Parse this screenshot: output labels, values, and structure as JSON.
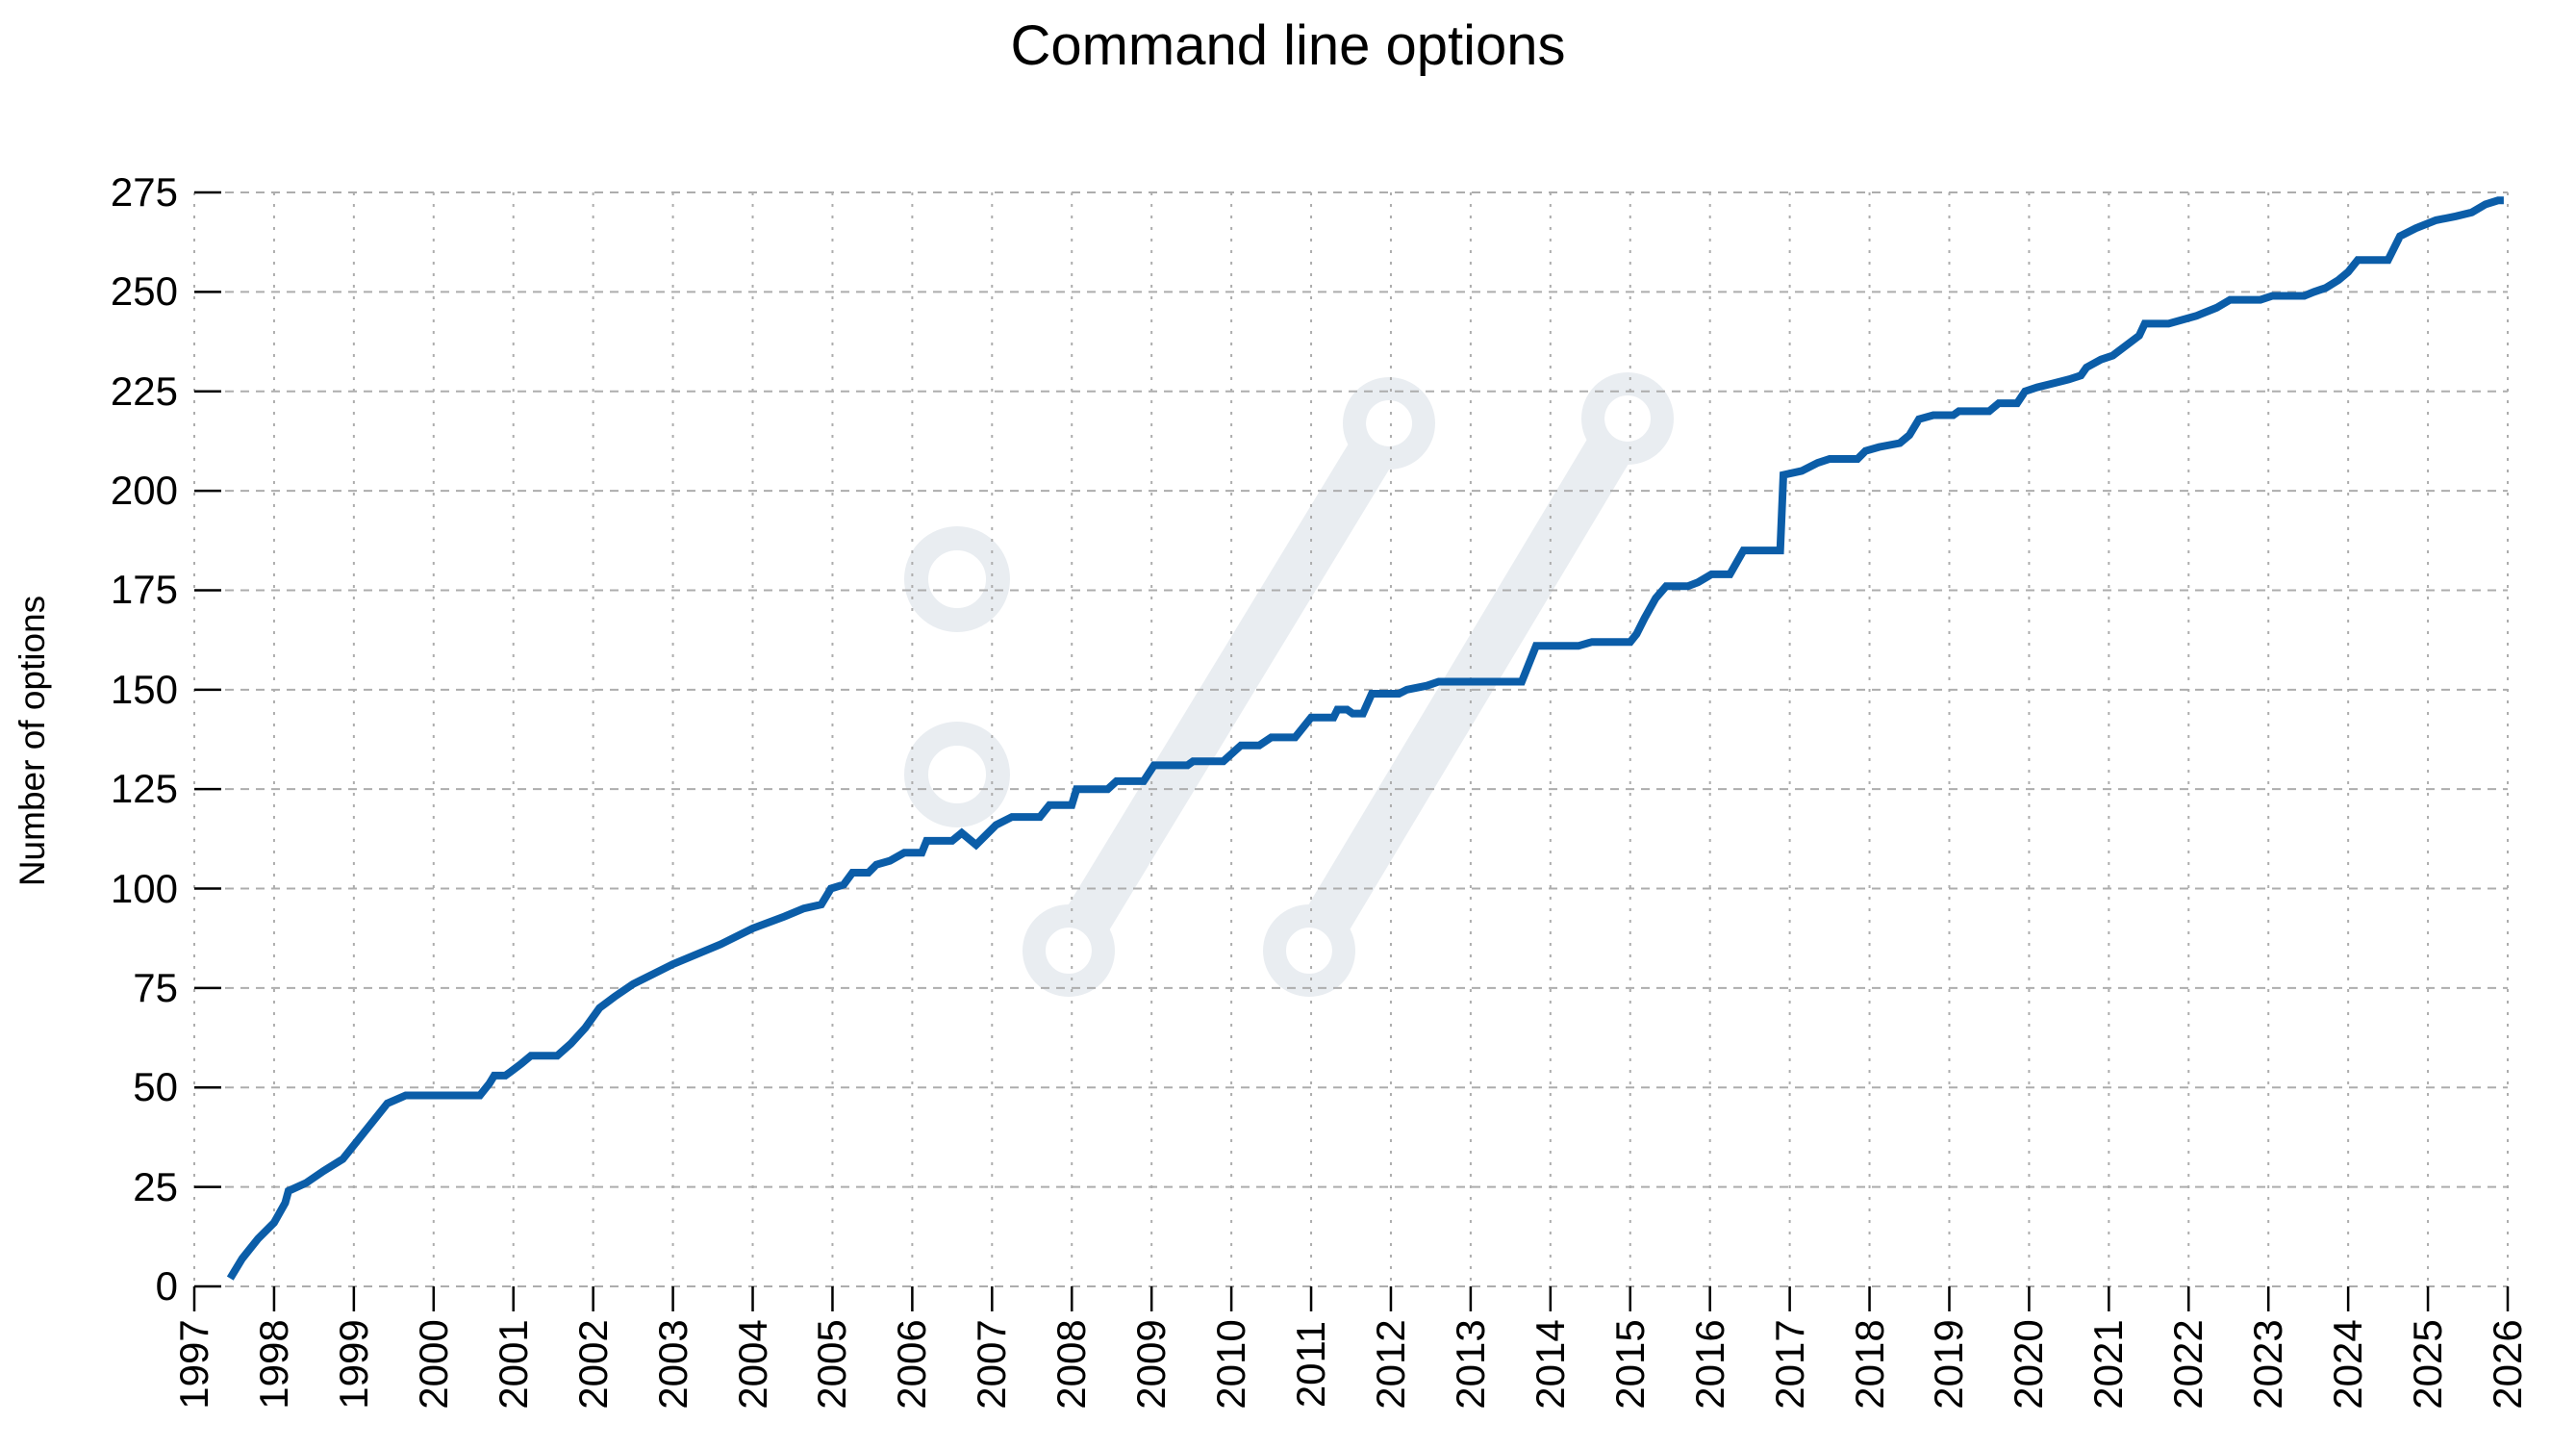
{
  "title": "Command line options",
  "watermark": {
    "name": "curl-symbol-watermark",
    "glyph": "://",
    "color": "#e9edf1"
  },
  "colors": {
    "background": "#ffffff",
    "line": "#0b5da8",
    "grid": "#adadad",
    "axis": "#000000",
    "text": "#000000"
  },
  "chart_data": {
    "type": "line",
    "title": "Command line options",
    "xlabel": "",
    "ylabel": "Number of options",
    "xlim": [
      1997,
      2026
    ],
    "ylim": [
      0,
      275
    ],
    "grid": true,
    "legend": false,
    "x_ticks": [
      1997,
      1998,
      1999,
      2000,
      2001,
      2002,
      2003,
      2004,
      2005,
      2006,
      2007,
      2008,
      2009,
      2010,
      2011,
      2012,
      2013,
      2014,
      2015,
      2016,
      2017,
      2018,
      2019,
      2020,
      2021,
      2022,
      2023,
      2024,
      2025,
      2026
    ],
    "y_ticks": [
      0,
      25,
      50,
      75,
      100,
      125,
      150,
      175,
      200,
      225,
      250,
      275
    ],
    "series": [
      {
        "name": "Number of options",
        "color": "#0b5da8",
        "points": [
          [
            1997.45,
            2
          ],
          [
            1997.6,
            7
          ],
          [
            1997.8,
            12
          ],
          [
            1998.0,
            16
          ],
          [
            1998.14,
            21
          ],
          [
            1998.18,
            24
          ],
          [
            1998.4,
            26
          ],
          [
            1998.62,
            29
          ],
          [
            1998.86,
            32
          ],
          [
            1999.1,
            38
          ],
          [
            1999.42,
            46
          ],
          [
            1999.65,
            48
          ],
          [
            2000.58,
            48
          ],
          [
            2000.7,
            51
          ],
          [
            2000.76,
            53
          ],
          [
            2000.9,
            53
          ],
          [
            2000.97,
            54
          ],
          [
            2001.1,
            56
          ],
          [
            2001.22,
            58
          ],
          [
            2001.55,
            58
          ],
          [
            2001.72,
            61
          ],
          [
            2001.9,
            65
          ],
          [
            2002.08,
            70
          ],
          [
            2002.28,
            73
          ],
          [
            2002.5,
            76
          ],
          [
            2003.0,
            81
          ],
          [
            2003.6,
            86
          ],
          [
            2004.0,
            90
          ],
          [
            2004.4,
            93
          ],
          [
            2004.64,
            95
          ],
          [
            2004.86,
            96
          ],
          [
            2004.98,
            100
          ],
          [
            2005.14,
            101
          ],
          [
            2005.25,
            104
          ],
          [
            2005.45,
            104
          ],
          [
            2005.55,
            106
          ],
          [
            2005.72,
            107
          ],
          [
            2005.9,
            109
          ],
          [
            2006.12,
            109
          ],
          [
            2006.18,
            112
          ],
          [
            2006.5,
            112
          ],
          [
            2006.62,
            114
          ],
          [
            2006.8,
            111
          ],
          [
            2007.05,
            116
          ],
          [
            2007.25,
            118
          ],
          [
            2007.6,
            118
          ],
          [
            2007.72,
            121
          ],
          [
            2008.0,
            121
          ],
          [
            2008.06,
            125
          ],
          [
            2008.45,
            125
          ],
          [
            2008.56,
            127
          ],
          [
            2008.9,
            127
          ],
          [
            2009.03,
            131
          ],
          [
            2009.45,
            131
          ],
          [
            2009.52,
            132
          ],
          [
            2009.9,
            132
          ],
          [
            2010.12,
            136
          ],
          [
            2010.35,
            136
          ],
          [
            2010.5,
            138
          ],
          [
            2010.8,
            138
          ],
          [
            2011.0,
            143
          ],
          [
            2011.28,
            143
          ],
          [
            2011.33,
            145
          ],
          [
            2011.45,
            145
          ],
          [
            2011.52,
            144
          ],
          [
            2011.65,
            144
          ],
          [
            2011.76,
            149
          ],
          [
            2012.1,
            149
          ],
          [
            2012.2,
            150
          ],
          [
            2012.45,
            151
          ],
          [
            2012.6,
            152
          ],
          [
            2013.64,
            152
          ],
          [
            2013.82,
            161
          ],
          [
            2014.35,
            161
          ],
          [
            2014.52,
            162
          ],
          [
            2015.0,
            162
          ],
          [
            2015.08,
            164
          ],
          [
            2015.18,
            168
          ],
          [
            2015.32,
            173
          ],
          [
            2015.45,
            176
          ],
          [
            2015.72,
            176
          ],
          [
            2015.85,
            177
          ],
          [
            2016.02,
            179
          ],
          [
            2016.25,
            179
          ],
          [
            2016.42,
            185
          ],
          [
            2016.88,
            185
          ],
          [
            2016.92,
            204
          ],
          [
            2017.15,
            205
          ],
          [
            2017.35,
            207
          ],
          [
            2017.5,
            208
          ],
          [
            2017.85,
            208
          ],
          [
            2017.95,
            210
          ],
          [
            2018.12,
            211
          ],
          [
            2018.38,
            212
          ],
          [
            2018.5,
            214
          ],
          [
            2018.62,
            218
          ],
          [
            2018.8,
            219
          ],
          [
            2019.05,
            219
          ],
          [
            2019.12,
            220
          ],
          [
            2019.5,
            220
          ],
          [
            2019.62,
            222
          ],
          [
            2019.85,
            222
          ],
          [
            2019.95,
            225
          ],
          [
            2020.1,
            226
          ],
          [
            2020.3,
            227
          ],
          [
            2020.5,
            228
          ],
          [
            2020.65,
            229
          ],
          [
            2020.72,
            231
          ],
          [
            2020.9,
            233
          ],
          [
            2021.05,
            234
          ],
          [
            2021.38,
            239
          ],
          [
            2021.45,
            242
          ],
          [
            2021.75,
            242
          ],
          [
            2022.1,
            244
          ],
          [
            2022.35,
            246
          ],
          [
            2022.52,
            248
          ],
          [
            2022.9,
            248
          ],
          [
            2023.05,
            249
          ],
          [
            2023.45,
            249
          ],
          [
            2023.57,
            250
          ],
          [
            2023.72,
            251
          ],
          [
            2023.88,
            253
          ],
          [
            2024.0,
            255
          ],
          [
            2024.12,
            258
          ],
          [
            2024.5,
            258
          ],
          [
            2024.65,
            264
          ],
          [
            2024.85,
            266
          ],
          [
            2025.1,
            268
          ],
          [
            2025.35,
            269
          ],
          [
            2025.55,
            270
          ],
          [
            2025.72,
            272
          ],
          [
            2025.88,
            273
          ],
          [
            2025.95,
            273
          ]
        ]
      }
    ]
  }
}
